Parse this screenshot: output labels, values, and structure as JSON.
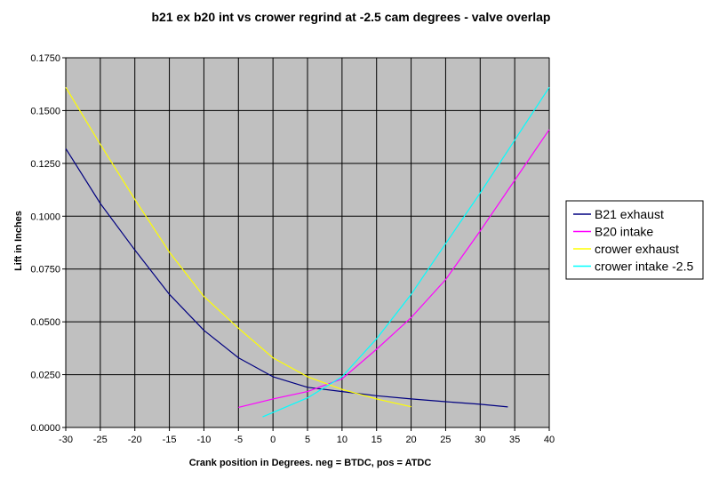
{
  "chart_data": {
    "type": "line",
    "title": "b21 ex b20 int vs crower regrind at -2.5 cam degrees - valve overlap",
    "xlabel": "Crank position in Degrees. neg = BTDC, pos = ATDC",
    "ylabel": "Lift in Inches",
    "xlim": [
      -30,
      40
    ],
    "ylim": [
      0,
      0.175
    ],
    "x_ticks": [
      "-30",
      "-25",
      "-20",
      "-15",
      "-10",
      "-5",
      "0",
      "5",
      "10",
      "15",
      "20",
      "25",
      "30",
      "35",
      "40"
    ],
    "y_ticks": [
      "0.0000",
      "0.0250",
      "0.0500",
      "0.0750",
      "0.1000",
      "0.1250",
      "0.1500",
      "0.1750"
    ],
    "grid": true,
    "legend_position": "right",
    "plot_background": "#c0c0c0",
    "series": [
      {
        "name": "B21 exhaust",
        "color": "#000080",
        "points": [
          [
            -30,
            0.132
          ],
          [
            -25,
            0.106
          ],
          [
            -20,
            0.084
          ],
          [
            -15,
            0.063
          ],
          [
            -10,
            0.046
          ],
          [
            -5,
            0.033
          ],
          [
            0,
            0.024
          ],
          [
            5,
            0.019
          ],
          [
            10,
            0.017
          ],
          [
            15,
            0.015
          ],
          [
            20,
            0.0135
          ],
          [
            25,
            0.0122
          ],
          [
            30,
            0.011
          ],
          [
            34,
            0.0097
          ]
        ]
      },
      {
        "name": "B20 intake",
        "color": "#ff00ff",
        "points": [
          [
            -5,
            0.0095
          ],
          [
            0,
            0.0135
          ],
          [
            5,
            0.017
          ],
          [
            10,
            0.023
          ],
          [
            15,
            0.037
          ],
          [
            20,
            0.052
          ],
          [
            25,
            0.07
          ],
          [
            30,
            0.093
          ],
          [
            35,
            0.117
          ],
          [
            40,
            0.141
          ]
        ]
      },
      {
        "name": "crower exhaust",
        "color": "#ffff00",
        "points": [
          [
            -30,
            0.161
          ],
          [
            -25,
            0.134
          ],
          [
            -20,
            0.108
          ],
          [
            -15,
            0.083
          ],
          [
            -10,
            0.062
          ],
          [
            -5,
            0.047
          ],
          [
            0,
            0.033
          ],
          [
            5,
            0.024
          ],
          [
            10,
            0.018
          ],
          [
            15,
            0.0135
          ],
          [
            20,
            0.0098
          ]
        ]
      },
      {
        "name": "crower intake -2.5",
        "color": "#00ffff",
        "points": [
          [
            -1.5,
            0.005
          ],
          [
            5,
            0.014
          ],
          [
            10,
            0.024
          ],
          [
            15,
            0.042
          ],
          [
            20,
            0.063
          ],
          [
            25,
            0.087
          ],
          [
            30,
            0.111
          ],
          [
            35,
            0.136
          ],
          [
            40,
            0.161
          ]
        ]
      }
    ]
  }
}
